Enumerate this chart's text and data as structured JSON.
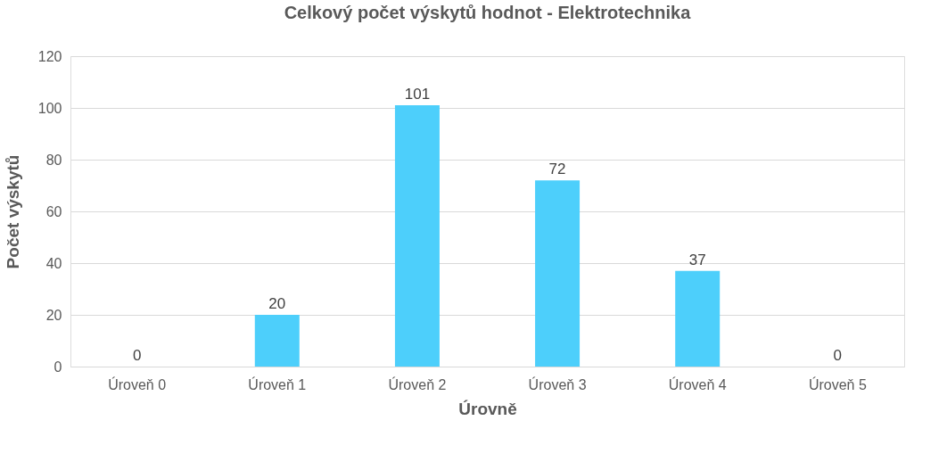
{
  "chart_data": {
    "type": "bar",
    "title": "Celkový počet výskytů hodnot - Elektrotechnika",
    "xlabel": "Úrovně",
    "ylabel": "Počet výskytů",
    "categories": [
      "Úroveň 0",
      "Úroveň 1",
      "Úroveň 2",
      "Úroveň 3",
      "Úroveň 4",
      "Úroveň 5"
    ],
    "values": [
      0,
      20,
      101,
      72,
      37,
      0
    ],
    "color": "#4dcffb",
    "ylim": [
      0,
      120
    ],
    "yticks": [
      0,
      20,
      40,
      60,
      80,
      100,
      120
    ],
    "grid": "y",
    "data_labels": true
  }
}
